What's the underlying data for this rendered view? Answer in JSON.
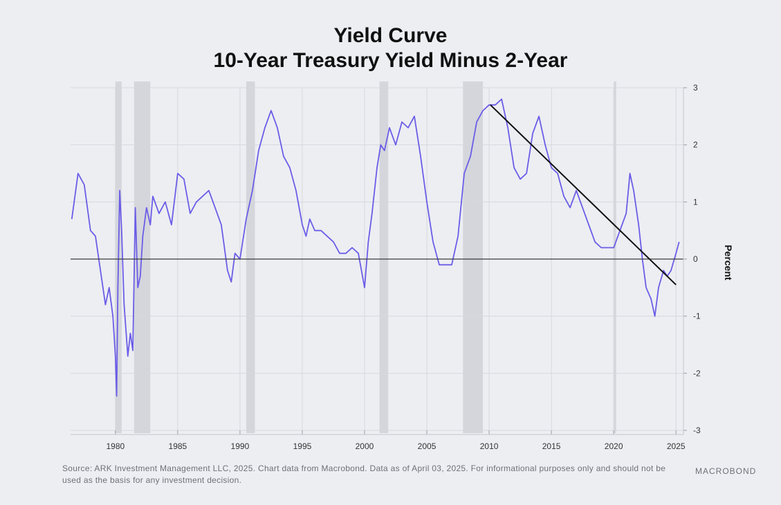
{
  "chart_data": {
    "type": "line",
    "title": [
      "Yield Curve",
      "10-Year Treasury Yield Minus 2-Year"
    ],
    "ylabel": "Percent",
    "xlim": [
      1976.4,
      2025.6
    ],
    "ylim": [
      -3,
      3
    ],
    "x_ticks": [
      1980,
      1985,
      1990,
      1995,
      2000,
      2005,
      2010,
      2015,
      2020,
      2025
    ],
    "y_ticks": [
      3,
      2,
      1,
      0,
      -1,
      -2,
      -3
    ],
    "grid": true,
    "series": [
      {
        "name": "10-Year Treasury Yield Minus 2-Year",
        "color": "#6b5ce7",
        "x": [
          1976.5,
          1977.0,
          1977.5,
          1978.0,
          1978.4,
          1978.8,
          1979.2,
          1979.5,
          1979.8,
          1980.0,
          1980.1,
          1980.2,
          1980.35,
          1980.5,
          1980.7,
          1981.0,
          1981.2,
          1981.4,
          1981.6,
          1981.8,
          1982.0,
          1982.2,
          1982.5,
          1982.8,
          1983.0,
          1983.5,
          1984.0,
          1984.5,
          1985.0,
          1985.5,
          1986.0,
          1986.5,
          1987.0,
          1987.5,
          1988.0,
          1988.5,
          1989.0,
          1989.3,
          1989.6,
          1990.0,
          1990.5,
          1991.0,
          1991.5,
          1992.0,
          1992.5,
          1993.0,
          1993.5,
          1994.0,
          1994.5,
          1995.0,
          1995.3,
          1995.6,
          1996.0,
          1996.5,
          1997.0,
          1997.5,
          1998.0,
          1998.5,
          1999.0,
          1999.5,
          2000.0,
          2000.3,
          2000.6,
          2001.0,
          2001.3,
          2001.6,
          2002.0,
          2002.5,
          2003.0,
          2003.5,
          2004.0,
          2004.5,
          2005.0,
          2005.5,
          2006.0,
          2006.5,
          2007.0,
          2007.5,
          2008.0,
          2008.5,
          2009.0,
          2009.5,
          2010.0,
          2010.5,
          2011.0,
          2011.5,
          2012.0,
          2012.5,
          2013.0,
          2013.5,
          2014.0,
          2014.5,
          2015.0,
          2015.5,
          2016.0,
          2016.5,
          2017.0,
          2017.5,
          2018.0,
          2018.5,
          2019.0,
          2019.5,
          2020.0,
          2020.5,
          2021.0,
          2021.3,
          2021.6,
          2022.0,
          2022.3,
          2022.6,
          2023.0,
          2023.3,
          2023.6,
          2024.0,
          2024.3,
          2024.6,
          2025.0,
          2025.25
        ],
        "values": [
          0.7,
          1.5,
          1.3,
          0.5,
          0.4,
          -0.2,
          -0.8,
          -0.5,
          -1.0,
          -1.7,
          -2.4,
          -0.5,
          1.2,
          0.5,
          -0.8,
          -1.7,
          -1.3,
          -1.6,
          0.9,
          -0.5,
          -0.3,
          0.4,
          0.9,
          0.6,
          1.1,
          0.8,
          1.0,
          0.6,
          1.5,
          1.4,
          0.8,
          1.0,
          1.1,
          1.2,
          0.9,
          0.6,
          -0.2,
          -0.4,
          0.1,
          0.0,
          0.7,
          1.2,
          1.9,
          2.3,
          2.6,
          2.3,
          1.8,
          1.6,
          1.2,
          0.6,
          0.4,
          0.7,
          0.5,
          0.5,
          0.4,
          0.3,
          0.1,
          0.1,
          0.2,
          0.1,
          -0.5,
          0.3,
          0.8,
          1.6,
          2.0,
          1.9,
          2.3,
          2.0,
          2.4,
          2.3,
          2.5,
          1.8,
          1.0,
          0.3,
          -0.1,
          -0.1,
          -0.1,
          0.4,
          1.5,
          1.8,
          2.4,
          2.6,
          2.7,
          2.7,
          2.8,
          2.3,
          1.6,
          1.4,
          1.5,
          2.2,
          2.5,
          2.0,
          1.6,
          1.5,
          1.1,
          0.9,
          1.2,
          0.9,
          0.6,
          0.3,
          0.2,
          0.2,
          0.2,
          0.5,
          0.8,
          1.5,
          1.2,
          0.6,
          0.0,
          -0.5,
          -0.7,
          -1.0,
          -0.5,
          -0.2,
          -0.3,
          -0.2,
          0.1,
          0.3
        ]
      }
    ],
    "recession_bands": [
      [
        1980.0,
        1980.5
      ],
      [
        1981.5,
        1982.8
      ],
      [
        1990.5,
        1991.2
      ],
      [
        2001.2,
        2001.9
      ],
      [
        2007.9,
        2009.5
      ],
      [
        2020.0,
        2020.2
      ]
    ],
    "trendline": {
      "x": [
        2010.1,
        2025.0
      ],
      "y": [
        2.7,
        -0.45
      ]
    },
    "zero_line": 0
  },
  "footer": {
    "source": "Source: ARK Investment Management LLC, 2025. Chart data from Macrobond. Data as of April 03, 2025. For informational purposes only and should not be used as the basis for any investment decision.",
    "logo": "MACROBOND"
  }
}
